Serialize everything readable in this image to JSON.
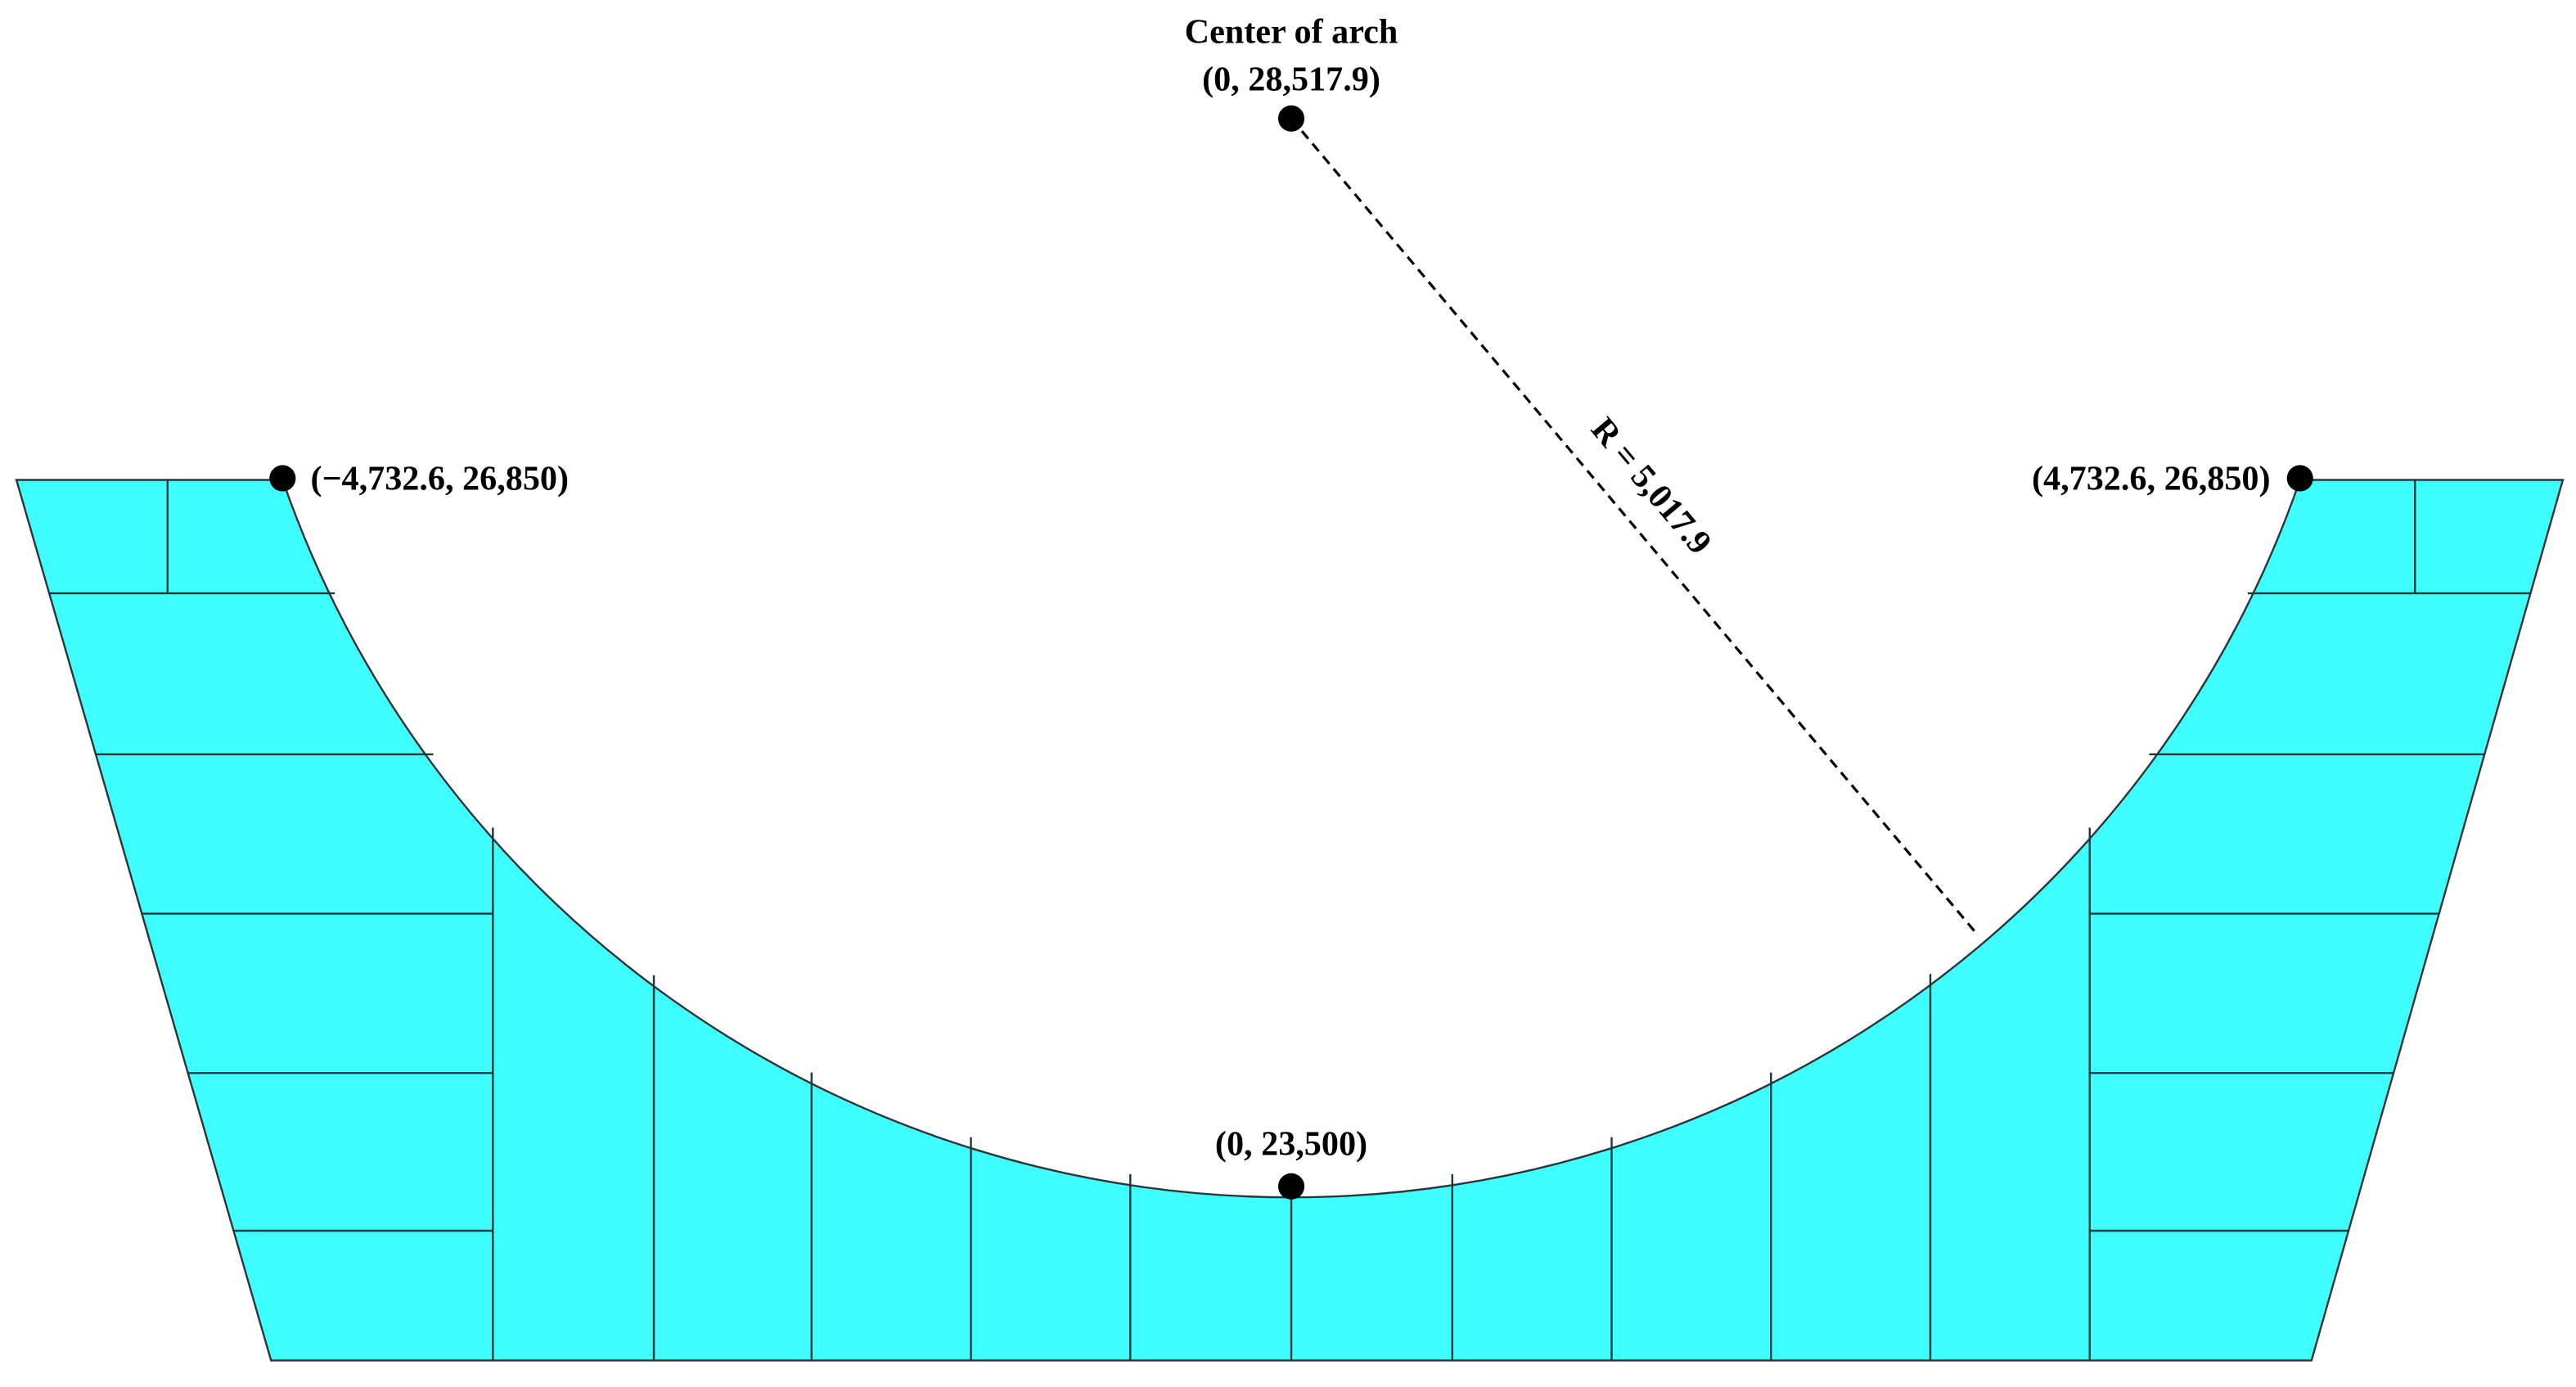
{
  "center": {
    "title": "Center of arch",
    "coords": "(0, 28,517.9)"
  },
  "points": [
    {
      "label": "(−4,732.6, 26,850)"
    },
    {
      "label": "(4,732.6, 26,850)"
    },
    {
      "label": "(0, 23,500)"
    }
  ],
  "radius_label": "R = 5,017.9"
}
